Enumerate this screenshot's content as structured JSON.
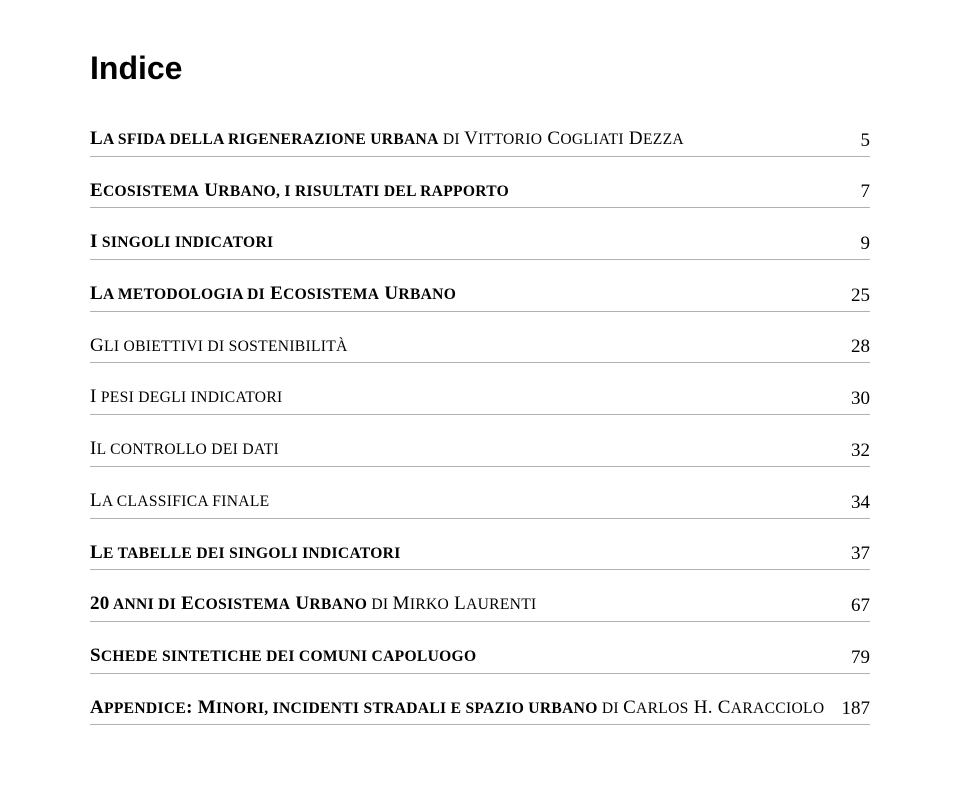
{
  "title": "Indice",
  "entries": [
    {
      "line1_a": "L",
      "line1_b": "a sfida della rigenerazione urbana",
      "line1_c": " di ",
      "auth1a": "V",
      "auth1b": "ittorio",
      "auth2a": "C",
      "auth2b": "ogliati",
      "auth3a": "D",
      "auth3b": "ezza",
      "page": "5"
    },
    {
      "bold1a": "E",
      "bold1b": "cosistema",
      "bold2a": "U",
      "bold2b": "rbano",
      "rest": ", i risultati del rapporto",
      "page": "7"
    },
    {
      "bold1a": "I",
      "bold1b": " singoli indicatori",
      "page": "9"
    },
    {
      "bold1a": "L",
      "bold1b": "a metodologia di",
      "bold2a": "E",
      "bold2b": "cosistema",
      "bold3a": "U",
      "bold3b": "rbano",
      "page": "25"
    },
    {
      "line1a": "G",
      "line1b": "li obiettivi di sostenibilità",
      "page": "28"
    },
    {
      "line1a": "I",
      "line1b": " pesi degli indicatori",
      "page": "30"
    },
    {
      "line1a": "I",
      "line1b": "l controllo dei dati",
      "page": "32"
    },
    {
      "line1a": "L",
      "line1b": "a classifica finale",
      "page": "34"
    },
    {
      "bold1a": "L",
      "bold1b": "e tabelle dei singoli indicatori",
      "page": "37"
    },
    {
      "bold1a": "20",
      "bold1b": " anni di",
      "bold2a": "E",
      "bold2b": "cosistema",
      "bold3a": "U",
      "bold3b": "rbano",
      "rest": " di ",
      "auth1a": "M",
      "auth1b": "irko",
      "auth2a": "L",
      "auth2b": "aurenti",
      "page": "67"
    },
    {
      "bold1a": "S",
      "bold1b": "chede sintetiche dei comuni capoluogo",
      "page": "79"
    },
    {
      "bold1a": "A",
      "bold1b": "ppendice",
      "bold2a": ": M",
      "bold2b": "inori",
      "bold3a": ", incidenti stradali e spazio urbano",
      "bold3b": "",
      "rest": " di ",
      "auth1a": "C",
      "auth1b": "arlos",
      "auth2a": "H. C",
      "auth2b": "aracciolo",
      "page": "187"
    }
  ]
}
